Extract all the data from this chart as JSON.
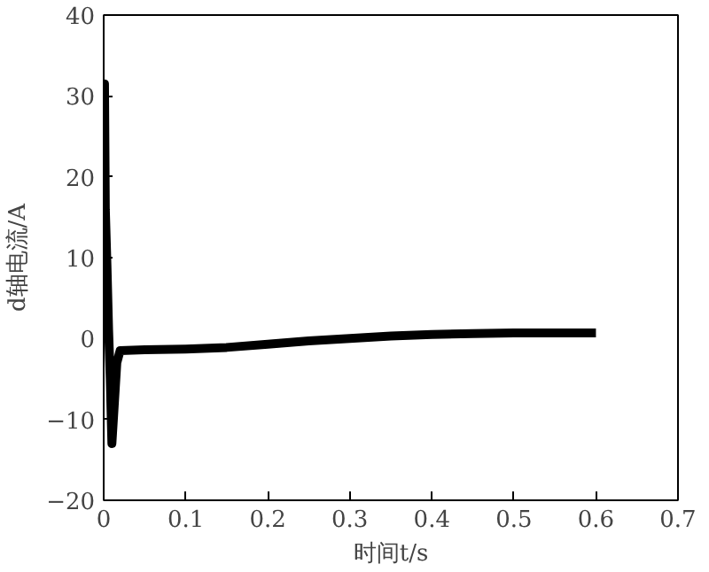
{
  "chart_data": {
    "type": "line",
    "xlabel": "时间t/s",
    "ylabel": "d轴电流/A",
    "x": [
      0,
      0.001,
      0.002,
      0.004,
      0.006,
      0.008,
      0.01,
      0.013,
      0.016,
      0.02,
      0.05,
      0.1,
      0.15,
      0.2,
      0.25,
      0.3,
      0.35,
      0.4,
      0.45,
      0.5,
      0.55,
      0.6
    ],
    "series": [
      {
        "color": "#000000",
        "values": [
          0,
          31.5,
          16,
          9,
          1,
          -5,
          -13,
          -8,
          -3,
          -1.5,
          -1.4,
          -1.3,
          -1.1,
          -0.7,
          -0.3,
          0,
          0.3,
          0.5,
          0.6,
          0.7,
          0.7,
          0.7
        ]
      }
    ],
    "xlim": [
      0,
      0.7
    ],
    "xticks": [
      0,
      0.1,
      0.2,
      0.3,
      0.4,
      0.5,
      0.6,
      0.7
    ],
    "ylim": [
      -20,
      40
    ],
    "yticks": [
      -20,
      -10,
      0,
      10,
      20,
      30,
      40
    ],
    "grid": false,
    "marker": "none",
    "line_style": "solid"
  }
}
